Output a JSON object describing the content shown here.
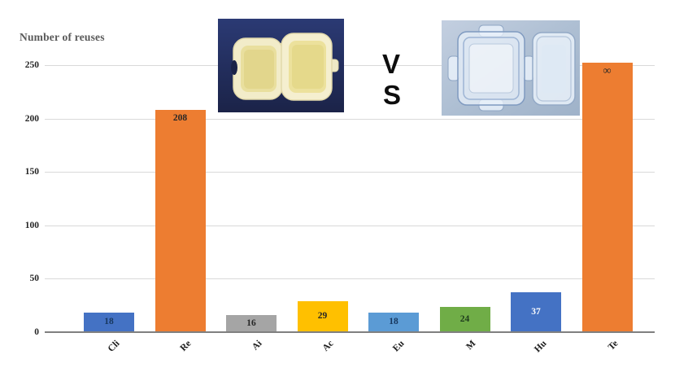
{
  "header": {
    "vs_top": "V",
    "vs_bottom": "S",
    "left_photo": "single-use foam clamshell food container",
    "right_photo": "reusable clear plastic container with locking lid"
  },
  "chart_data": {
    "type": "bar",
    "title": "",
    "ylabel": "Number of reuses",
    "xlabel": "",
    "categories": [
      "Cli",
      "Re",
      "Ai",
      "Ac",
      "Eu",
      "M",
      "Hu",
      "Te"
    ],
    "series": [
      {
        "name": "Number of reuses",
        "values": [
          18,
          208,
          16,
          29,
          18,
          24,
          37,
          null
        ]
      }
    ],
    "data_labels": [
      "18",
      "208",
      "16",
      "29",
      "18",
      "24",
      "37",
      "∞"
    ],
    "infinity_plot_value": 252,
    "bar_colors": [
      "#4472C4",
      "#ED7D31",
      "#A5A5A5",
      "#FFC000",
      "#5B9BD5",
      "#70AD47",
      "#4472C4",
      "#ED7D31"
    ],
    "label_colors": [
      "#17375E",
      "#262626",
      "#262626",
      "#262626",
      "#17375E",
      "#1d3a1d",
      "#FFFFFF",
      "#262626"
    ],
    "ylim": [
      0,
      250
    ],
    "yticks": [
      0,
      50,
      100,
      150,
      200,
      250
    ],
    "grid": true,
    "legend": false,
    "colors": {
      "gridline": "#d9d9d9",
      "axis": "#808080",
      "tick_text": "#262626",
      "ylabel_text": "#595959"
    }
  }
}
